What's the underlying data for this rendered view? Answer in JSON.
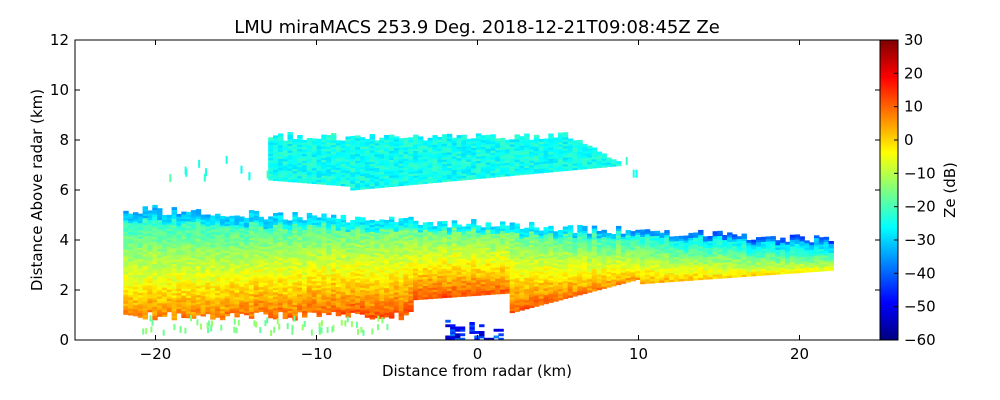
{
  "chart_data": {
    "type": "heatmap",
    "title": "LMU miraMACS 253.9 Deg. 2018-12-21T09:08:45Z  Ze",
    "xlabel": "Distance from radar (km)",
    "ylabel": "Distance Above radar  (km)",
    "xlim": [
      -25,
      25
    ],
    "ylim": [
      0,
      12
    ],
    "xticks": [
      -20,
      -10,
      0,
      10,
      20
    ],
    "xtick_labels": [
      "−20",
      "−10",
      "0",
      "10",
      "20"
    ],
    "yticks": [
      0,
      2,
      4,
      6,
      8,
      10,
      12
    ],
    "ytick_labels": [
      "0",
      "2",
      "4",
      "6",
      "8",
      "10",
      "12"
    ],
    "colorbar": {
      "label": "Ze (dB)",
      "range": [
        -60,
        30
      ],
      "colormap": "jet",
      "ticks": [
        30,
        20,
        10,
        0,
        -10,
        -20,
        -30,
        -40,
        -50,
        -60
      ],
      "tick_labels": [
        "30",
        "20",
        "10",
        "0",
        "−10",
        "−20",
        "−30",
        "−40",
        "−50",
        "−60"
      ]
    },
    "regions": [
      {
        "name": "lower-cloud-layer",
        "x_range": [
          -22,
          22
        ],
        "base_km": [
          0.8,
          2.8
        ],
        "top_km": [
          5.2,
          4.0
        ],
        "ze_dB": [
          -30,
          8
        ]
      },
      {
        "name": "upper-cloud-layer",
        "x_range": [
          -13,
          9
        ],
        "base_km": [
          6.0,
          7.2
        ],
        "top_km": [
          8.3,
          7.0
        ],
        "ze_dB": [
          -30,
          -22
        ]
      },
      {
        "name": "near-surface-echo",
        "x_range": [
          -2,
          1.5
        ],
        "base_km": [
          0,
          0
        ],
        "top_km": [
          0.7,
          0.7
        ],
        "ze_dB": [
          -55,
          -35
        ]
      }
    ]
  }
}
